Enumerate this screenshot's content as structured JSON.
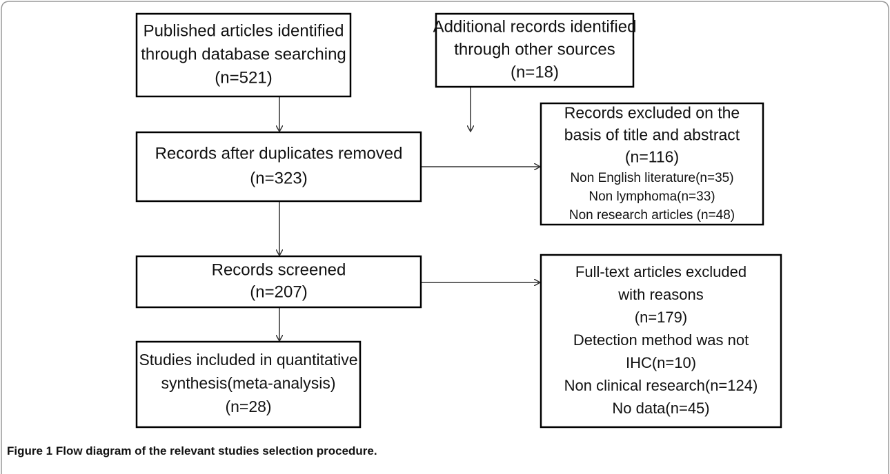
{
  "nodes": [
    {
      "lines": [
        "Published articles identified",
        "through database searching",
        "(n=521)"
      ]
    },
    {
      "lines": [
        "Additional records identified",
        "through other sources",
        "(n=18)"
      ]
    },
    {
      "lines": [
        "Records after duplicates removed",
        "(n=323)"
      ]
    },
    {
      "lines": [
        "Records excluded on the",
        "basis of title and abstract",
        "(n=116)",
        "Non English literature(n=35)",
        "Non lymphoma(n=33)",
        "Non research articles (n=48)"
      ]
    },
    {
      "lines": [
        "Records screened",
        "(n=207)"
      ]
    },
    {
      "lines": [
        "Full-text articles excluded",
        "with reasons",
        "(n=179)",
        "Detection method was not",
        "IHC(n=10)",
        "Non clinical research(n=124)",
        "No data(n=45)"
      ]
    },
    {
      "lines": [
        "Studies included in quantitative",
        "synthesis(meta-analysis)",
        "(n=28)"
      ]
    }
  ],
  "caption": {
    "label": "Figure 1",
    "text": "Flow diagram of the relevant studies selection procedure."
  }
}
